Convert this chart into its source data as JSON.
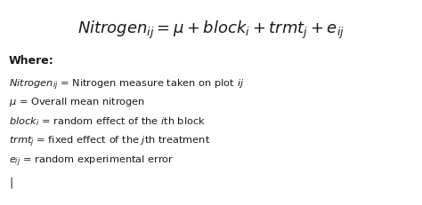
{
  "bg_color": "#ffffff",
  "text_color": "#1a1a1a",
  "title_formula": "$\\mathit{Nitrogen}_{ij} = \\mu + \\mathit{block}_i + \\mathit{trmt}_j + e_{ij}$",
  "where_label": "Where:",
  "line1_math": "$\\mathit{Nitrogen}_{ij}$",
  "line1_rest": " = Nitrogen measure taken on plot $\\mathit{ij}$",
  "line2_math": "$\\mu$",
  "line2_rest": " = Overall mean nitrogen",
  "line3_math": "$\\mathit{block}_i$",
  "line3_rest": " = random effect of the $\\mathit{i}$th block",
  "line4_math": "$\\mathit{trmt}_j$",
  "line4_rest": " = fixed effect of the $\\mathit{j}$th treatment",
  "line5_math": "$e_{ij}$",
  "line5_rest": " = random experimental error",
  "cursor": "|",
  "title_fontsize": 13,
  "where_fontsize": 9,
  "body_fontsize": 8.2,
  "cursor_fontsize": 9
}
